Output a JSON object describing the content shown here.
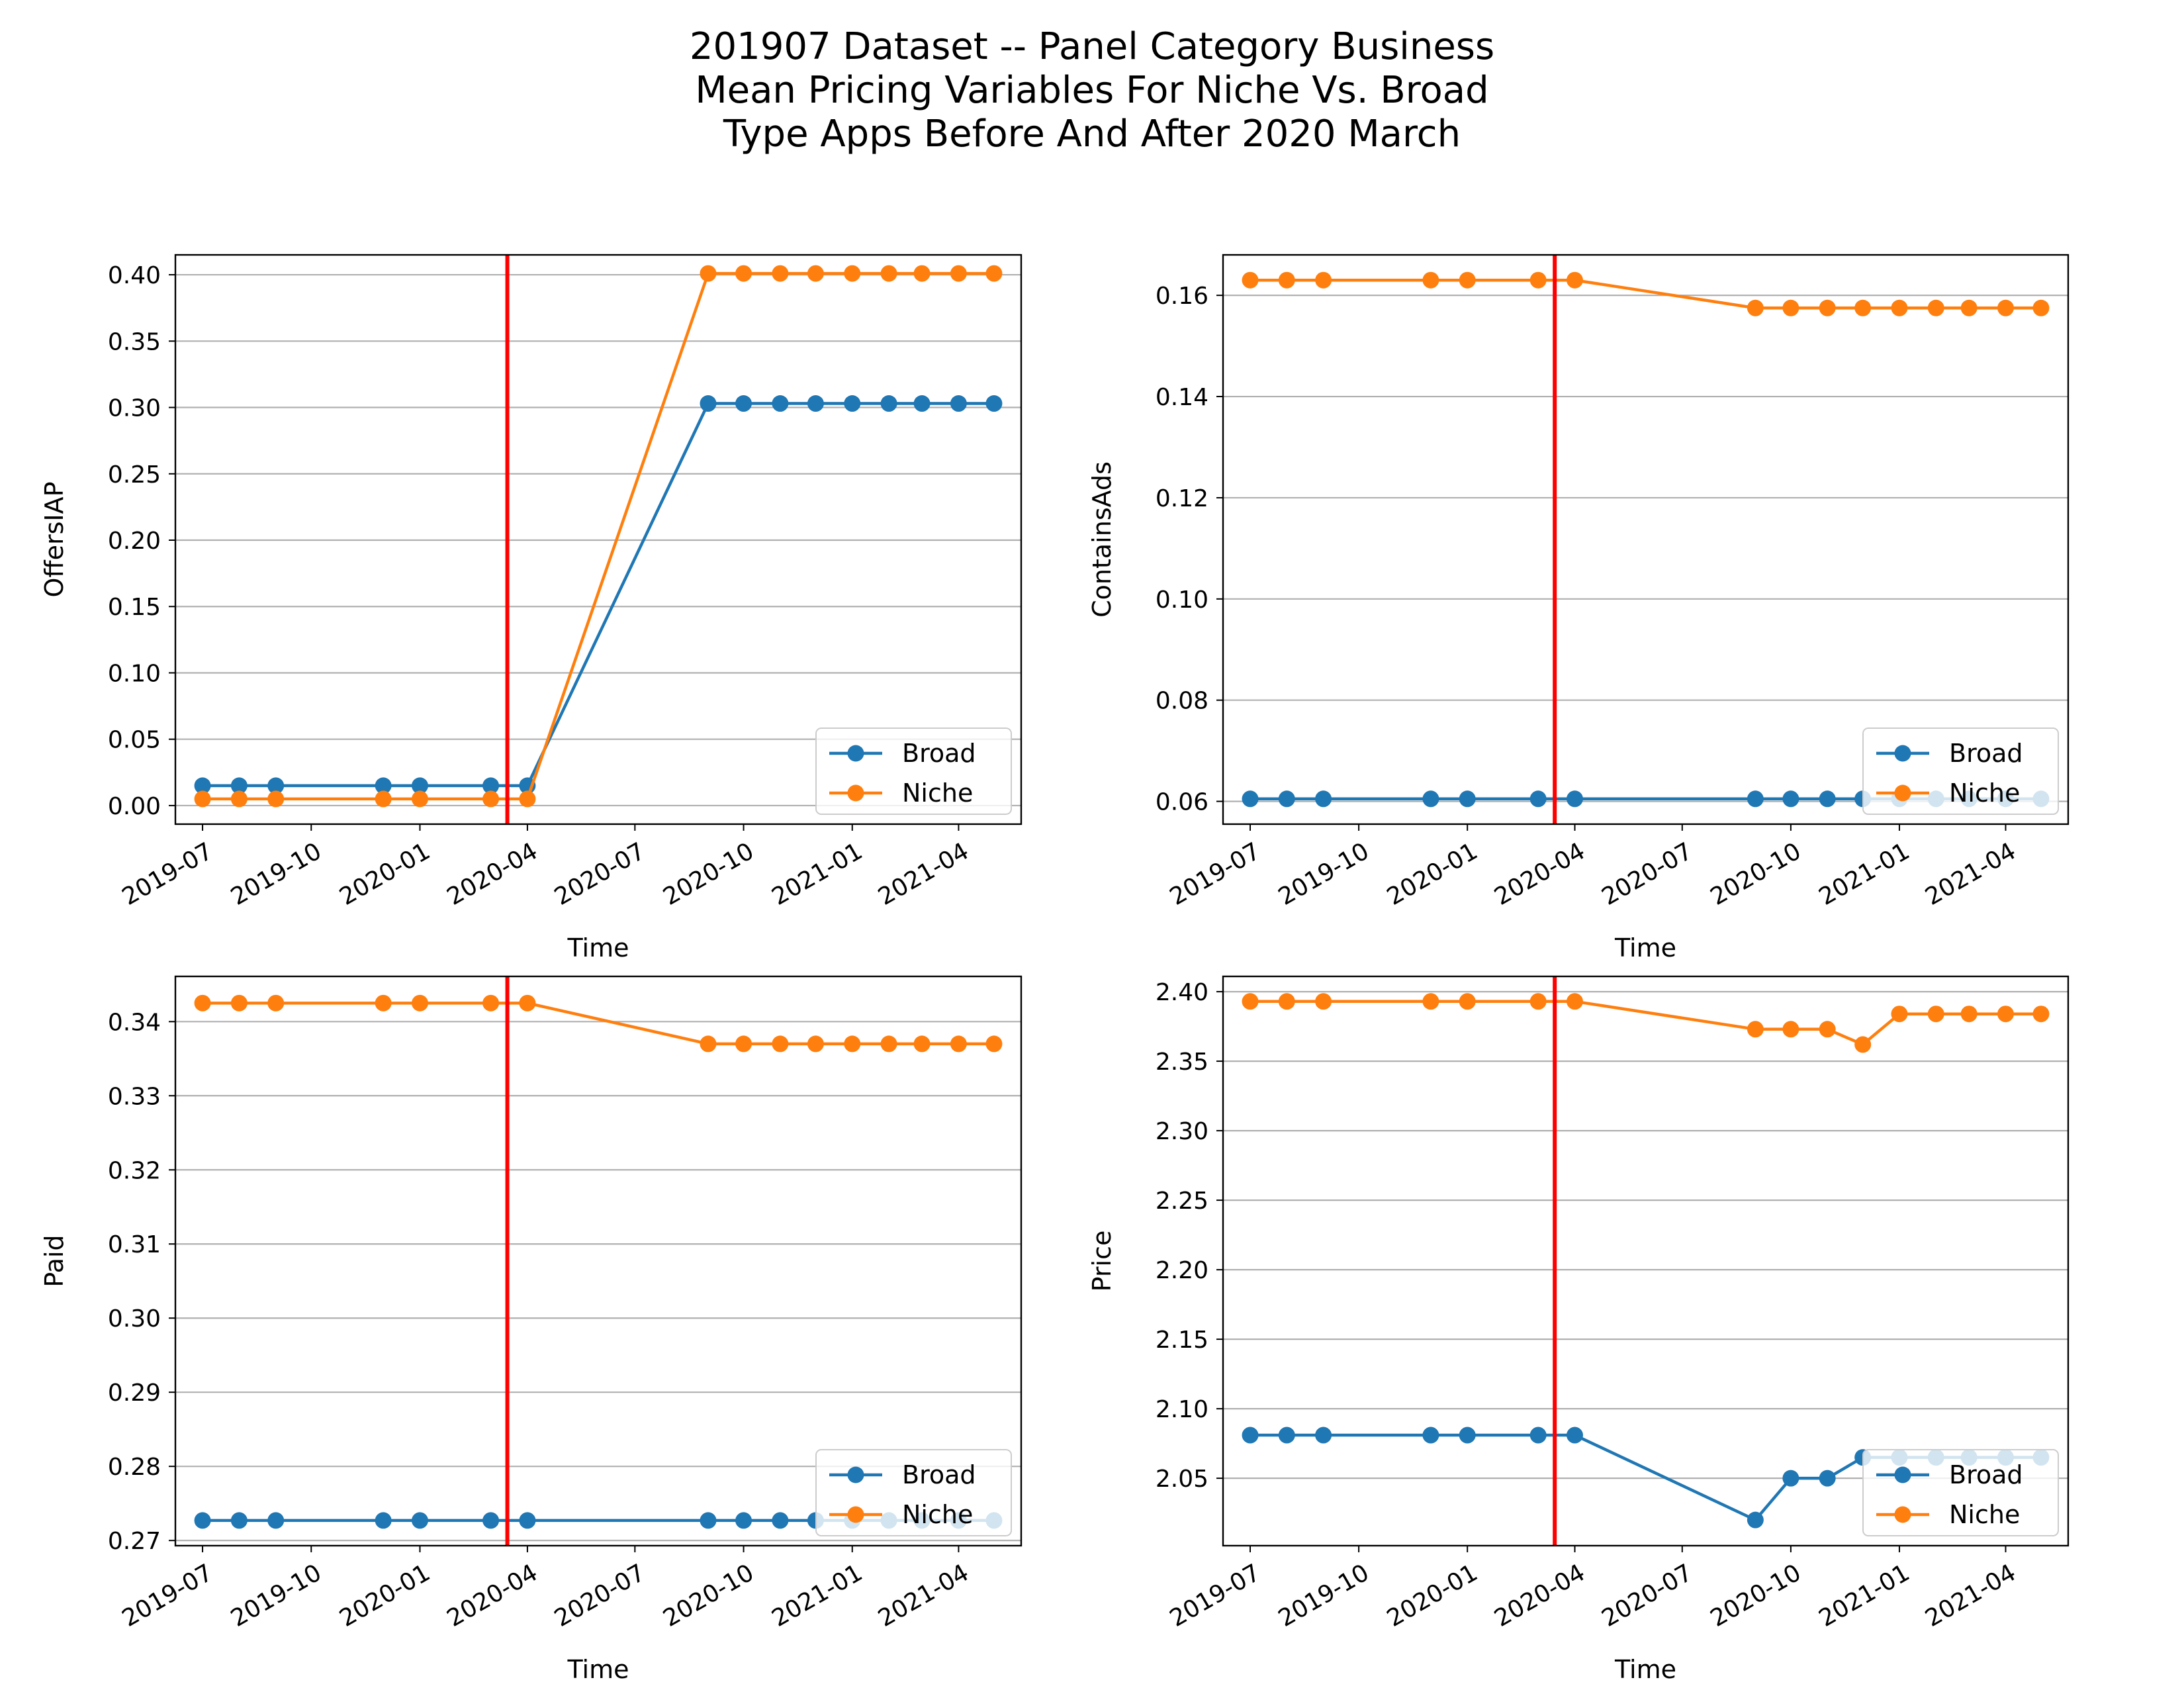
{
  "figure": {
    "title_lines": [
      "201907 Dataset -- Panel Category Business",
      "Mean Pricing Variables For Niche Vs. Broad",
      "Type Apps Before And After 2020 March"
    ]
  },
  "colors": {
    "broad": "#1f77b4",
    "niche": "#ff7f0e",
    "event_line": "#ff0000",
    "grid": "#b0b0b0"
  },
  "chart_data": [
    {
      "type": "line",
      "xlabel": "Time",
      "ylabel": "OffersIAP",
      "x_tick_labels": [
        "2019-07",
        "2019-10",
        "2020-01",
        "2020-04",
        "2020-07",
        "2020-10",
        "2021-01",
        "2021-04"
      ],
      "ylim": [
        -0.014,
        0.415
      ],
      "y_ticks": [
        "0.00",
        "0.05",
        "0.10",
        "0.15",
        "0.20",
        "0.25",
        "0.30",
        "0.35",
        "0.40"
      ],
      "grid": "horizontal",
      "legend_position": "lower-right",
      "vertical_line_date": "2020-03-15",
      "x": [
        "2019-07-01",
        "2019-08-01",
        "2019-09-01",
        "2019-12-01",
        "2020-01-01",
        "2020-03-01",
        "2020-04-01",
        "2020-09-01",
        "2020-10-01",
        "2020-11-01",
        "2020-12-01",
        "2021-01-01",
        "2021-02-01",
        "2021-03-01",
        "2021-04-01",
        "2021-05-01"
      ],
      "series": [
        {
          "name": "Broad",
          "values": [
            0.015,
            0.015,
            0.015,
            0.015,
            0.015,
            0.015,
            0.015,
            0.303,
            0.303,
            0.303,
            0.303,
            0.303,
            0.303,
            0.303,
            0.303,
            0.303
          ]
        },
        {
          "name": "Niche",
          "values": [
            0.005,
            0.005,
            0.005,
            0.005,
            0.005,
            0.005,
            0.005,
            0.401,
            0.401,
            0.401,
            0.401,
            0.401,
            0.401,
            0.401,
            0.401,
            0.401
          ]
        }
      ]
    },
    {
      "type": "line",
      "xlabel": "Time",
      "ylabel": "ContainsAds",
      "x_tick_labels": [
        "2019-07",
        "2019-10",
        "2020-01",
        "2020-04",
        "2020-07",
        "2020-10",
        "2021-01",
        "2021-04"
      ],
      "ylim": [
        0.0555,
        0.168
      ],
      "y_ticks": [
        "0.06",
        "0.08",
        "0.10",
        "0.12",
        "0.14",
        "0.16"
      ],
      "grid": "horizontal",
      "legend_position": "lower-right",
      "vertical_line_date": "2020-03-15",
      "x": [
        "2019-07-01",
        "2019-08-01",
        "2019-09-01",
        "2019-12-01",
        "2020-01-01",
        "2020-03-01",
        "2020-04-01",
        "2020-09-01",
        "2020-10-01",
        "2020-11-01",
        "2020-12-01",
        "2021-01-01",
        "2021-02-01",
        "2021-03-01",
        "2021-04-01",
        "2021-05-01"
      ],
      "series": [
        {
          "name": "Broad",
          "values": [
            0.0605,
            0.0605,
            0.0605,
            0.0605,
            0.0605,
            0.0605,
            0.0605,
            0.0605,
            0.0605,
            0.0605,
            0.0605,
            0.0605,
            0.0605,
            0.0605,
            0.0605,
            0.0605
          ]
        },
        {
          "name": "Niche",
          "values": [
            0.163,
            0.163,
            0.163,
            0.163,
            0.163,
            0.163,
            0.163,
            0.1575,
            0.1575,
            0.1575,
            0.1575,
            0.1575,
            0.1575,
            0.1575,
            0.1575,
            0.1575
          ]
        }
      ]
    },
    {
      "type": "line",
      "xlabel": "Time",
      "ylabel": "Paid",
      "x_tick_labels": [
        "2019-07",
        "2019-10",
        "2020-01",
        "2020-04",
        "2020-07",
        "2020-10",
        "2021-01",
        "2021-04"
      ],
      "ylim": [
        0.2693,
        0.3461
      ],
      "y_ticks": [
        "0.27",
        "0.28",
        "0.29",
        "0.30",
        "0.31",
        "0.32",
        "0.33",
        "0.34"
      ],
      "grid": "horizontal",
      "legend_position": "lower-right",
      "vertical_line_date": "2020-03-15",
      "x": [
        "2019-07-01",
        "2019-08-01",
        "2019-09-01",
        "2019-12-01",
        "2020-01-01",
        "2020-03-01",
        "2020-04-01",
        "2020-09-01",
        "2020-10-01",
        "2020-11-01",
        "2020-12-01",
        "2021-01-01",
        "2021-02-01",
        "2021-03-01",
        "2021-04-01",
        "2021-05-01"
      ],
      "series": [
        {
          "name": "Broad",
          "values": [
            0.2727,
            0.2727,
            0.2727,
            0.2727,
            0.2727,
            0.2727,
            0.2727,
            0.2727,
            0.2727,
            0.2727,
            0.2727,
            0.2727,
            0.2727,
            0.2727,
            0.2727,
            0.2727
          ]
        },
        {
          "name": "Niche",
          "values": [
            0.3425,
            0.3425,
            0.3425,
            0.3425,
            0.3425,
            0.3425,
            0.3425,
            0.337,
            0.337,
            0.337,
            0.337,
            0.337,
            0.337,
            0.337,
            0.337,
            0.337
          ]
        }
      ]
    },
    {
      "type": "line",
      "xlabel": "Time",
      "ylabel": "Price",
      "x_tick_labels": [
        "2019-07",
        "2019-10",
        "2020-01",
        "2020-04",
        "2020-07",
        "2020-10",
        "2021-01",
        "2021-04"
      ],
      "ylim": [
        2.0015,
        2.411
      ],
      "y_ticks": [
        "2.05",
        "2.10",
        "2.15",
        "2.20",
        "2.25",
        "2.30",
        "2.35",
        "2.40"
      ],
      "grid": "horizontal",
      "legend_position": "lower-right",
      "vertical_line_date": "2020-03-15",
      "x": [
        "2019-07-01",
        "2019-08-01",
        "2019-09-01",
        "2019-12-01",
        "2020-01-01",
        "2020-03-01",
        "2020-04-01",
        "2020-09-01",
        "2020-10-01",
        "2020-11-01",
        "2020-12-01",
        "2021-01-01",
        "2021-02-01",
        "2021-03-01",
        "2021-04-01",
        "2021-05-01"
      ],
      "series": [
        {
          "name": "Broad",
          "values": [
            2.081,
            2.081,
            2.081,
            2.081,
            2.081,
            2.081,
            2.081,
            2.02,
            2.05,
            2.05,
            2.065,
            2.065,
            2.065,
            2.065,
            2.065,
            2.065
          ]
        },
        {
          "name": "Niche",
          "values": [
            2.393,
            2.393,
            2.393,
            2.393,
            2.393,
            2.393,
            2.393,
            2.373,
            2.373,
            2.373,
            2.362,
            2.384,
            2.384,
            2.384,
            2.384,
            2.384
          ]
        }
      ]
    }
  ]
}
